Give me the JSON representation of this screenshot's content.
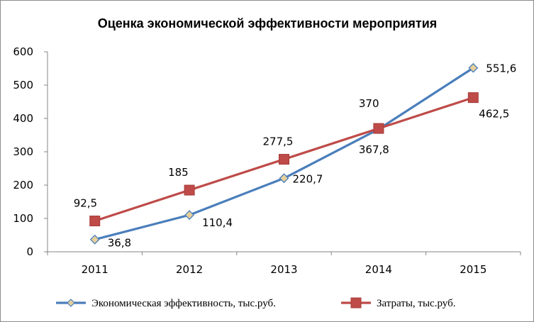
{
  "chart_data": {
    "type": "line",
    "title": "Оценка экономической эффективности мероприятия",
    "categories": [
      "2011",
      "2012",
      "2013",
      "2014",
      "2015"
    ],
    "ylim": [
      0,
      600
    ],
    "yticks": [
      0,
      100,
      200,
      300,
      400,
      500,
      600
    ],
    "ytick_labels": [
      "0",
      "100",
      "200",
      "300",
      "400",
      "500",
      "600"
    ],
    "grid": false,
    "legend_position": "bottom",
    "series": [
      {
        "name": "Экономическая эффективность, тыс.руб.",
        "values": [
          36.8,
          110.4,
          220.7,
          367.8,
          551.6
        ],
        "labels": [
          "36,8",
          "110,4",
          "220,7",
          "367,8",
          "551,6"
        ],
        "color": "#4a7ebb",
        "marker": "diamond",
        "marker_fill": "#e6cf9a"
      },
      {
        "name": "Затраты, тыс.руб.",
        "values": [
          92.5,
          185,
          277.5,
          370,
          462.5
        ],
        "labels": [
          "92,5",
          "185",
          "277,5",
          "370",
          "462,5"
        ],
        "color": "#be4b48",
        "marker": "square",
        "marker_fill": "#be4b48"
      }
    ]
  }
}
